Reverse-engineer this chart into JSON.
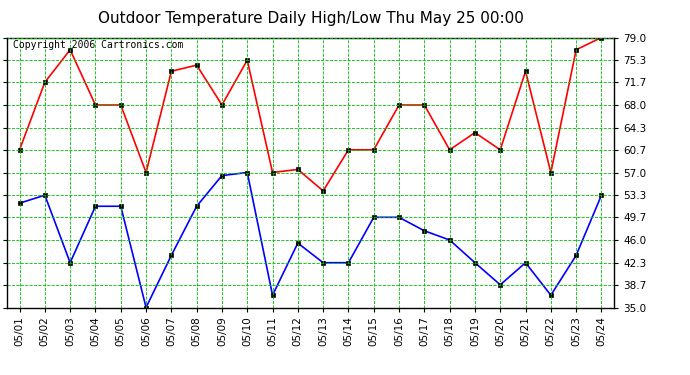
{
  "title": "Outdoor Temperature Daily High/Low Thu May 25 00:00",
  "copyright": "Copyright 2006 Cartronics.com",
  "dates": [
    "05/01",
    "05/02",
    "05/03",
    "05/04",
    "05/05",
    "05/06",
    "05/07",
    "05/08",
    "05/09",
    "05/10",
    "05/11",
    "05/12",
    "05/13",
    "05/14",
    "05/15",
    "05/16",
    "05/17",
    "05/18",
    "05/19",
    "05/20",
    "05/21",
    "05/22",
    "05/23",
    "05/24"
  ],
  "high": [
    60.7,
    71.7,
    77.0,
    68.0,
    68.0,
    57.0,
    73.5,
    74.5,
    68.0,
    75.3,
    57.0,
    57.5,
    54.0,
    60.7,
    60.7,
    68.0,
    68.0,
    60.7,
    63.5,
    60.7,
    73.5,
    57.0,
    77.0,
    79.0
  ],
  "low": [
    52.0,
    53.3,
    42.3,
    51.5,
    51.5,
    35.0,
    43.5,
    51.5,
    56.5,
    57.0,
    37.0,
    45.5,
    42.3,
    42.3,
    49.7,
    49.7,
    47.5,
    46.0,
    42.3,
    38.7,
    42.3,
    37.0,
    43.5,
    53.3
  ],
  "ylim": [
    35.0,
    79.0
  ],
  "yticks": [
    35.0,
    38.7,
    42.3,
    46.0,
    49.7,
    53.3,
    57.0,
    60.7,
    64.3,
    68.0,
    71.7,
    75.3,
    79.0
  ],
  "bg_color": "#ffffff",
  "plot_bg": "#ffffff",
  "high_color": "#ff0000",
  "low_color": "#0000ff",
  "grid_color": "#00bb00",
  "title_fontsize": 11,
  "copyright_fontsize": 7,
  "tick_fontsize": 7.5
}
